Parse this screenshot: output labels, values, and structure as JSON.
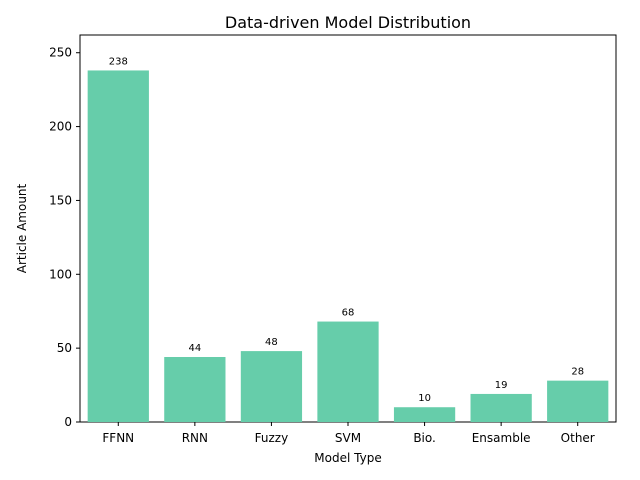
{
  "chart_data": {
    "type": "bar",
    "title": "Data-driven Model Distribution",
    "xlabel": "Model Type",
    "ylabel": "Article Amount",
    "categories": [
      "FFNN",
      "RNN",
      "Fuzzy",
      "SVM",
      "Bio.",
      "Ensamble",
      "Other"
    ],
    "values": [
      238,
      44,
      48,
      68,
      10,
      19,
      28
    ],
    "data_labels": [
      "238",
      "44",
      "48",
      "68",
      "10",
      "19",
      "28"
    ],
    "ylim": [
      0,
      262
    ],
    "yticks": [
      0,
      50,
      100,
      150,
      200,
      250
    ],
    "bar_color": "#66cdaa",
    "grid": false,
    "legend": "none"
  }
}
